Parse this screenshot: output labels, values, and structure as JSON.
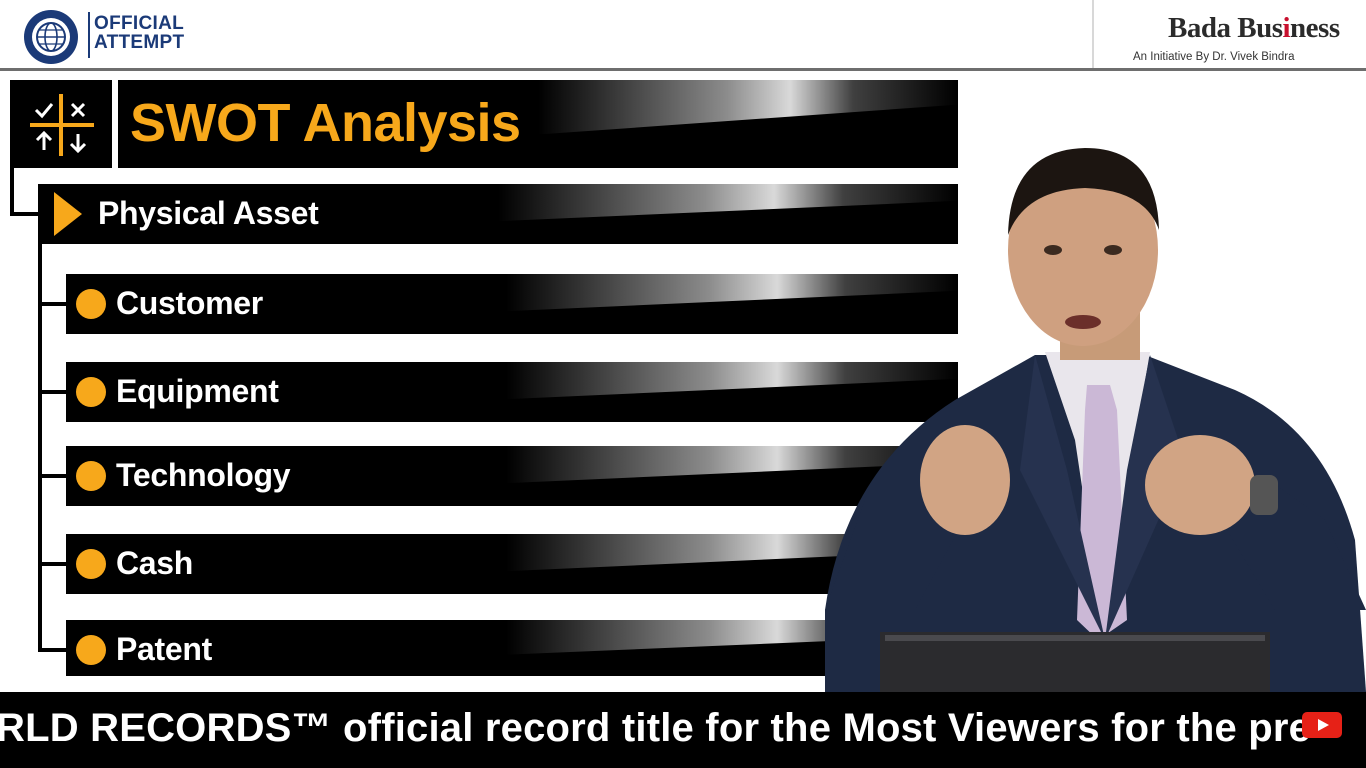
{
  "header": {
    "gwr_badge": [
      "OFFICIAL",
      "ATTEMPT"
    ],
    "brand_name_pre": "Bada Bus",
    "brand_name_i": "i",
    "brand_name_post": "ness",
    "brand_tagline": "An Initiative By Dr. Vivek Bindra"
  },
  "diagram": {
    "title": "SWOT Analysis",
    "section": "Physical Asset",
    "items": [
      {
        "label": "Customer"
      },
      {
        "label": "Equipment"
      },
      {
        "label": "Technology"
      },
      {
        "label": "Cash"
      },
      {
        "label": "Patent"
      }
    ]
  },
  "ticker": {
    "text": "RLD RECORDS™ official record title for the Most Viewers for the pre"
  },
  "colors": {
    "accent_orange": "#f7a81b",
    "bar_black": "#000000",
    "gwr_blue": "#1b3a78",
    "brand_red": "#c8102e"
  },
  "icons": {
    "title_icon": "swot-grid-icon",
    "gwr_logo": "guinness-world-records-globe-icon",
    "channel_badge": "youtube-icon"
  }
}
